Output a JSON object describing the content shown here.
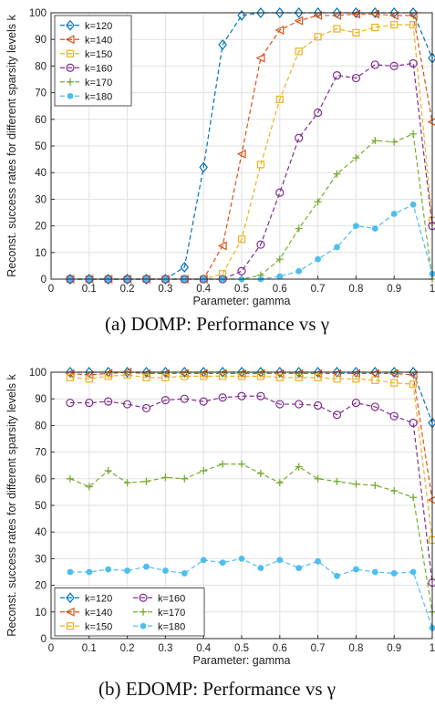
{
  "chart_data": [
    {
      "type": "line",
      "caption": "(a) DOMP: Performance vs γ",
      "xlabel": "Parameter: gamma",
      "ylabel": "Reconst. success rates for different sparsity levels k",
      "xlim": [
        0,
        1
      ],
      "ylim": [
        0,
        100
      ],
      "xticks": [
        "0",
        "0.1",
        "0.2",
        "0.3",
        "0.4",
        "0.5",
        "0.6",
        "0.7",
        "0.8",
        "0.9",
        "1"
      ],
      "yticks": [
        "0",
        "10",
        "20",
        "30",
        "40",
        "50",
        "60",
        "70",
        "80",
        "90",
        "100"
      ],
      "grid": true,
      "legend_position": "top-left",
      "legend_columns": 1,
      "x": [
        0.05,
        0.1,
        0.15,
        0.2,
        0.25,
        0.3,
        0.35,
        0.4,
        0.45,
        0.5,
        0.55,
        0.6,
        0.65,
        0.7,
        0.75,
        0.8,
        0.85,
        0.9,
        0.95,
        1.0
      ],
      "series": [
        {
          "name": "k=120",
          "color": "#0072BD",
          "marker": "diamond",
          "values": [
            0,
            0,
            0,
            0,
            0,
            0,
            4.5,
            42,
            88,
            99,
            100,
            100,
            100,
            100,
            100,
            100,
            100,
            100,
            100,
            83
          ]
        },
        {
          "name": "k=140",
          "color": "#D95319",
          "marker": "triangle-left",
          "values": [
            0,
            0,
            0,
            0,
            0,
            0,
            0,
            0,
            12.5,
            47,
            83,
            93.5,
            97,
            99,
            99,
            99.5,
            99.5,
            99,
            99,
            59
          ]
        },
        {
          "name": "k=150",
          "color": "#EDB120",
          "marker": "square",
          "values": [
            0,
            0,
            0,
            0,
            0,
            0,
            0,
            0,
            2,
            15,
            43,
            67.5,
            85.5,
            91,
            94,
            92.5,
            94.5,
            95.5,
            95.5,
            22
          ]
        },
        {
          "name": "k=160",
          "color": "#7E2F8E",
          "marker": "circle",
          "values": [
            0,
            0,
            0,
            0,
            0,
            0,
            0,
            0,
            0,
            3,
            13,
            32.5,
            53,
            62.5,
            76.5,
            75.5,
            80.5,
            80,
            81,
            20
          ]
        },
        {
          "name": "k=170",
          "color": "#77AC30",
          "marker": "plus",
          "values": [
            0,
            0,
            0,
            0,
            0,
            0,
            0,
            0,
            0,
            0,
            1.5,
            7.5,
            19,
            29,
            39.5,
            45.5,
            52,
            51.5,
            54.5,
            0
          ]
        },
        {
          "name": "k=180",
          "color": "#4DBEEE",
          "marker": "filled-circle",
          "values": [
            0,
            0,
            0,
            0,
            0,
            0,
            0,
            0,
            0,
            0,
            0,
            1,
            3,
            7.5,
            12,
            20,
            19,
            24.5,
            28,
            2
          ]
        }
      ]
    },
    {
      "type": "line",
      "caption": "(b) EDOMP: Performance vs γ",
      "xlabel": "Parameter: gamma",
      "ylabel": "Reconst. success rates for different sparsity levels k",
      "xlim": [
        0,
        1
      ],
      "ylim": [
        0,
        100
      ],
      "xticks": [
        "0",
        "0.1",
        "0.2",
        "0.3",
        "0.4",
        "0.5",
        "0.6",
        "0.7",
        "0.8",
        "0.9",
        "1"
      ],
      "yticks": [
        "0",
        "10",
        "20",
        "30",
        "40",
        "50",
        "60",
        "70",
        "80",
        "90",
        "100"
      ],
      "grid": true,
      "legend_position": "bottom-left",
      "legend_columns": 2,
      "x": [
        0.05,
        0.1,
        0.15,
        0.2,
        0.25,
        0.3,
        0.35,
        0.4,
        0.45,
        0.5,
        0.55,
        0.6,
        0.65,
        0.7,
        0.75,
        0.8,
        0.85,
        0.9,
        0.95,
        1.0
      ],
      "series": [
        {
          "name": "k=120",
          "color": "#0072BD",
          "marker": "diamond",
          "values": [
            100,
            100,
            100,
            100,
            100,
            100,
            100,
            100,
            100,
            100,
            100,
            100,
            100,
            100,
            100,
            100,
            100,
            100,
            100,
            81
          ]
        },
        {
          "name": "k=140",
          "color": "#D95319",
          "marker": "triangle-left",
          "values": [
            99.5,
            99,
            99.5,
            100,
            99.5,
            99.5,
            99.5,
            99.5,
            99.5,
            99.5,
            99.5,
            99.5,
            99.5,
            99.5,
            99.5,
            99.5,
            99.5,
            99.5,
            99,
            52
          ]
        },
        {
          "name": "k=150",
          "color": "#EDB120",
          "marker": "square",
          "values": [
            98,
            97.5,
            98.5,
            99,
            98,
            98,
            98.5,
            98.5,
            98.5,
            98.5,
            98.5,
            98,
            98,
            98,
            97.5,
            97.5,
            97,
            96,
            95.5,
            37
          ]
        },
        {
          "name": "k=160",
          "color": "#7E2F8E",
          "marker": "circle",
          "values": [
            88.5,
            88.5,
            89,
            88,
            86.5,
            89.5,
            90,
            89,
            90.5,
            91,
            91,
            88,
            88,
            87.5,
            84,
            88.5,
            87,
            83.5,
            81,
            21
          ]
        },
        {
          "name": "k=170",
          "color": "#77AC30",
          "marker": "plus",
          "values": [
            60,
            57,
            63,
            58.5,
            59,
            60.5,
            60,
            63,
            65.5,
            65.5,
            62,
            58.5,
            64.5,
            60,
            59,
            58,
            57.5,
            55.5,
            53,
            10
          ]
        },
        {
          "name": "k=180",
          "color": "#4DBEEE",
          "marker": "filled-circle",
          "values": [
            25,
            25,
            26,
            25.5,
            27,
            25.5,
            24.5,
            29.5,
            28.5,
            30,
            26.5,
            29.5,
            26.5,
            29,
            23.5,
            26,
            25,
            24.5,
            25,
            4
          ]
        }
      ]
    }
  ]
}
